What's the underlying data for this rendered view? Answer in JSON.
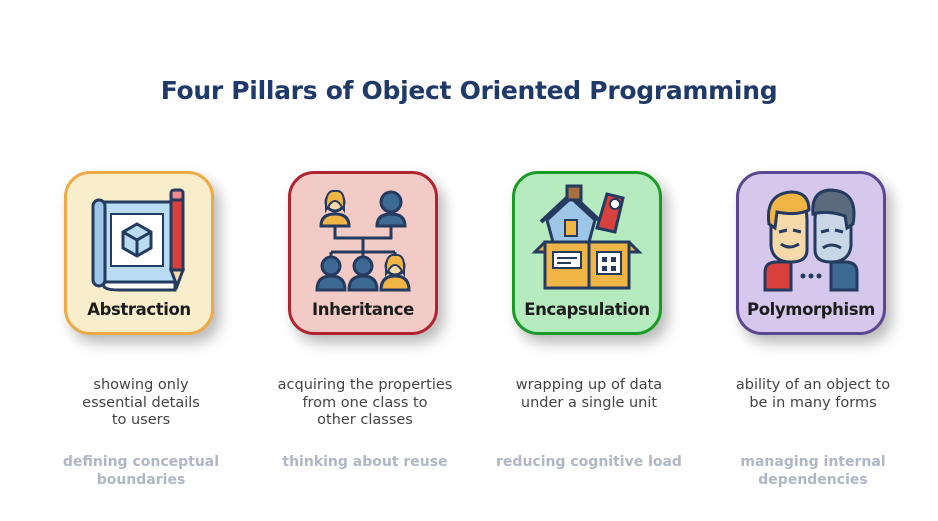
{
  "title": "Four Pillars of Object Oriented Programming",
  "pillars": [
    {
      "label": "Abstraction",
      "desc_lines": [
        "showing only",
        "essential details",
        "to users"
      ],
      "note_lines": [
        "defining conceptual",
        "boundaries"
      ],
      "icon": "blueprint-pencil-icon",
      "card_bg": "#f8eecb",
      "card_border": "#eeaa45"
    },
    {
      "label": "Inheritance",
      "desc_lines": [
        "acquiring the properties",
        "from one class to",
        "other classes"
      ],
      "note_lines": [
        "thinking about reuse"
      ],
      "icon": "family-tree-icon",
      "card_bg": "#f2cbc6",
      "card_border": "#b02330"
    },
    {
      "label": "Encapsulation",
      "desc_lines": [
        "wrapping up of data",
        "under a single unit"
      ],
      "note_lines": [
        "reducing cognitive load"
      ],
      "icon": "box-of-items-icon",
      "card_bg": "#b5ebbf",
      "card_border": "#1a9a27"
    },
    {
      "label": "Polymorphism",
      "desc_lines": [
        "ability of an object to",
        "be in many forms"
      ],
      "note_lines": [
        "managing internal",
        "dependencies"
      ],
      "icon": "two-faces-icon",
      "card_bg": "#d6c7ec",
      "card_border": "#5b4691"
    }
  ]
}
